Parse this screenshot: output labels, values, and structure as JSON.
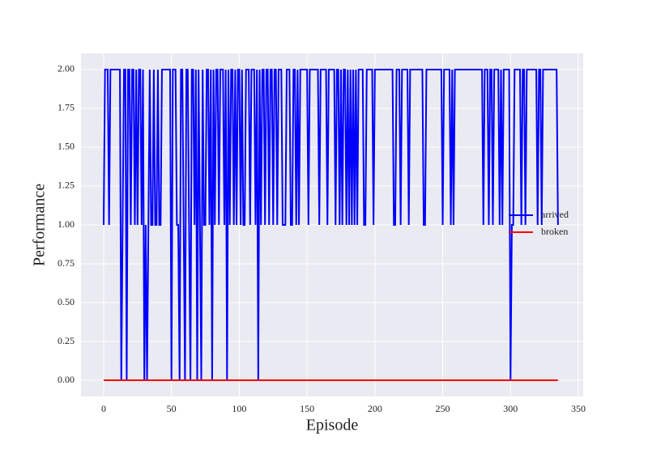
{
  "chart_data": {
    "type": "line",
    "x_label": "Episode",
    "y_label": "Performance",
    "x": [
      0,
      1,
      2,
      3,
      4,
      5,
      6,
      7,
      8,
      9,
      10,
      11,
      12,
      13,
      14,
      15,
      16,
      17,
      18,
      19,
      20,
      21,
      22,
      23,
      24,
      25,
      26,
      27,
      28,
      29,
      30,
      31,
      32,
      33,
      34,
      35,
      36,
      37,
      38,
      39,
      40,
      41,
      42,
      43,
      44,
      45,
      46,
      47,
      48,
      49,
      50,
      51,
      52,
      53,
      54,
      55,
      56,
      57,
      58,
      59,
      60,
      61,
      62,
      63,
      64,
      65,
      66,
      67,
      68,
      69,
      70,
      71,
      72,
      73,
      74,
      75,
      76,
      77,
      78,
      79,
      80,
      81,
      82,
      83,
      84,
      85,
      86,
      87,
      88,
      89,
      90,
      91,
      92,
      93,
      94,
      95,
      96,
      97,
      98,
      99,
      100,
      101,
      102,
      103,
      104,
      105,
      106,
      107,
      108,
      109,
      110,
      111,
      112,
      113,
      114,
      115,
      116,
      117,
      118,
      119,
      120,
      121,
      122,
      123,
      124,
      125,
      126,
      127,
      128,
      129,
      130,
      131,
      132,
      133,
      134,
      135,
      136,
      137,
      138,
      139,
      140,
      141,
      142,
      143,
      144,
      145,
      146,
      147,
      148,
      149,
      150,
      151,
      152,
      153,
      154,
      155,
      156,
      157,
      158,
      159,
      160,
      161,
      162,
      163,
      164,
      165,
      166,
      167,
      168,
      169,
      170,
      171,
      172,
      173,
      174,
      175,
      176,
      177,
      178,
      179,
      180,
      181,
      182,
      183,
      184,
      185,
      186,
      187,
      188,
      189,
      190,
      191,
      192,
      193,
      194,
      195,
      196,
      197,
      198,
      199,
      200,
      201,
      202,
      203,
      204,
      205,
      206,
      207,
      208,
      209,
      210,
      211,
      212,
      213,
      214,
      215,
      216,
      217,
      218,
      219,
      220,
      221,
      222,
      223,
      224,
      225,
      226,
      227,
      228,
      229,
      230,
      231,
      232,
      233,
      234,
      235,
      236,
      237,
      238,
      239,
      240,
      241,
      242,
      243,
      244,
      245,
      246,
      247,
      248,
      249,
      250,
      251,
      252,
      253,
      254,
      255,
      256,
      257,
      258,
      259,
      260,
      261,
      262,
      263,
      264,
      265,
      266,
      267,
      268,
      269,
      270,
      271,
      272,
      273,
      274,
      275,
      276,
      277,
      278,
      279,
      280,
      281,
      282,
      283,
      284,
      285,
      286,
      287,
      288,
      289,
      290,
      291,
      292,
      293,
      294,
      295,
      296,
      297,
      298,
      299,
      300,
      301,
      302,
      303,
      304,
      305,
      306,
      307,
      308,
      309,
      310,
      311,
      312,
      313,
      314,
      315,
      316,
      317,
      318,
      319,
      320,
      321,
      322,
      323,
      324,
      325,
      326,
      327,
      328,
      329,
      330,
      331,
      332,
      333,
      334,
      335
    ],
    "series": [
      {
        "name": "arrived",
        "color": "#0000ff",
        "values": [
          1,
          2,
          2,
          2,
          1,
          2,
          2,
          2,
          2,
          2,
          2,
          2,
          2,
          0,
          1,
          2,
          2,
          0,
          2,
          2,
          1,
          2,
          2,
          1,
          2,
          1,
          2,
          2,
          1,
          2,
          0,
          1,
          0,
          1,
          2,
          1,
          1,
          2,
          1,
          1,
          2,
          1,
          1,
          2,
          2,
          2,
          2,
          2,
          2,
          2,
          0,
          2,
          2,
          2,
          1,
          1,
          0,
          2,
          2,
          1,
          0,
          2,
          2,
          1,
          0,
          2,
          2,
          1,
          2,
          0,
          2,
          1,
          0,
          2,
          1,
          1,
          2,
          2,
          1,
          2,
          0,
          2,
          1,
          2,
          2,
          1,
          2,
          2,
          2,
          1,
          2,
          0,
          2,
          1,
          2,
          2,
          1,
          2,
          1,
          2,
          2,
          1,
          2,
          1,
          1,
          2,
          2,
          2,
          1,
          2,
          2,
          2,
          1,
          2,
          0,
          2,
          1,
          2,
          2,
          1,
          2,
          2,
          1,
          2,
          2,
          1,
          2,
          2,
          1,
          2,
          2,
          2,
          1,
          1,
          1,
          2,
          2,
          2,
          1,
          1,
          2,
          2,
          1,
          2,
          1,
          2,
          2,
          2,
          2,
          2,
          2,
          1,
          2,
          2,
          2,
          2,
          2,
          2,
          2,
          1,
          2,
          2,
          2,
          2,
          2,
          1,
          2,
          2,
          2,
          2,
          2,
          1,
          2,
          2,
          1,
          2,
          1,
          2,
          2,
          1,
          2,
          1,
          2,
          1,
          2,
          1,
          2,
          1,
          2,
          2,
          2,
          2,
          1,
          1,
          2,
          2,
          2,
          2,
          2,
          1,
          2,
          2,
          2,
          2,
          2,
          2,
          2,
          2,
          2,
          2,
          2,
          2,
          2,
          2,
          1,
          1,
          2,
          2,
          2,
          1,
          2,
          2,
          2,
          2,
          2,
          1,
          2,
          2,
          2,
          2,
          2,
          2,
          2,
          2,
          2,
          2,
          1,
          1,
          2,
          2,
          2,
          2,
          2,
          2,
          2,
          2,
          2,
          2,
          2,
          2,
          1,
          2,
          2,
          2,
          2,
          2,
          1,
          2,
          1,
          2,
          2,
          2,
          2,
          2,
          2,
          2,
          2,
          2,
          2,
          2,
          2,
          2,
          2,
          2,
          2,
          2,
          2,
          2,
          2,
          2,
          1,
          2,
          2,
          2,
          1,
          2,
          2,
          1,
          2,
          2,
          2,
          2,
          1,
          2,
          1,
          2,
          2,
          2,
          2,
          2,
          0,
          1,
          1,
          2,
          2,
          2,
          2,
          2,
          1,
          2,
          2,
          1,
          2,
          2,
          2,
          2,
          2,
          2,
          2,
          2,
          1,
          2,
          2,
          1,
          2,
          2,
          2,
          2,
          2,
          2,
          2,
          2,
          2,
          2,
          2,
          1
        ]
      },
      {
        "name": "broken",
        "color": "#ff0000",
        "values": [
          0,
          0,
          0,
          0,
          0,
          0,
          0,
          0,
          0,
          0,
          0,
          0,
          0,
          0,
          0,
          0,
          0,
          0,
          0,
          0,
          0,
          0,
          0,
          0,
          0,
          0,
          0,
          0,
          0,
          0,
          0,
          0,
          0,
          0,
          0,
          0,
          0,
          0,
          0,
          0,
          0,
          0,
          0,
          0,
          0,
          0,
          0,
          0,
          0,
          0,
          0,
          0,
          0,
          0,
          0,
          0,
          0,
          0,
          0,
          0,
          0,
          0,
          0,
          0,
          0,
          0,
          0,
          0,
          0,
          0,
          0,
          0,
          0,
          0,
          0,
          0,
          0,
          0,
          0,
          0,
          0,
          0,
          0,
          0,
          0,
          0,
          0,
          0,
          0,
          0,
          0,
          0,
          0,
          0,
          0,
          0,
          0,
          0,
          0,
          0,
          0,
          0,
          0,
          0,
          0,
          0,
          0,
          0,
          0,
          0,
          0,
          0,
          0,
          0,
          0,
          0,
          0,
          0,
          0,
          0,
          0,
          0,
          0,
          0,
          0,
          0,
          0,
          0,
          0,
          0,
          0,
          0,
          0,
          0,
          0,
          0,
          0,
          0,
          0,
          0,
          0,
          0,
          0,
          0,
          0,
          0,
          0,
          0,
          0,
          0,
          0,
          0,
          0,
          0,
          0,
          0,
          0,
          0,
          0,
          0,
          0,
          0,
          0,
          0,
          0,
          0,
          0,
          0,
          0,
          0,
          0,
          0,
          0,
          0,
          0,
          0,
          0,
          0,
          0,
          0,
          0,
          0,
          0,
          0,
          0,
          0,
          0,
          0,
          0,
          0,
          0,
          0,
          0,
          0,
          0,
          0,
          0,
          0,
          0,
          0,
          0,
          0,
          0,
          0,
          0,
          0,
          0,
          0,
          0,
          0,
          0,
          0,
          0,
          0,
          0,
          0,
          0,
          0,
          0,
          0,
          0,
          0,
          0,
          0,
          0,
          0,
          0,
          0,
          0,
          0,
          0,
          0,
          0,
          0,
          0,
          0,
          0,
          0,
          0,
          0,
          0,
          0,
          0,
          0,
          0,
          0,
          0,
          0,
          0,
          0,
          0,
          0,
          0,
          0,
          0,
          0,
          0,
          0,
          0,
          0,
          0,
          0,
          0,
          0,
          0,
          0,
          0,
          0,
          0,
          0,
          0,
          0,
          0,
          0,
          0,
          0,
          0,
          0,
          0,
          0,
          0,
          0,
          0,
          0,
          0,
          0,
          0,
          0,
          0,
          0,
          0,
          0,
          0,
          0,
          0,
          0,
          0,
          0,
          0,
          0,
          0,
          0,
          0,
          0,
          0,
          0,
          0,
          0,
          0,
          0,
          0,
          0,
          0,
          0,
          0,
          0,
          0,
          0,
          0,
          0,
          0,
          0,
          0,
          0,
          0,
          0,
          0,
          0,
          0,
          0,
          0,
          0,
          0,
          0,
          0,
          0
        ]
      }
    ],
    "xlim": [
      -16.7,
      353.6
    ],
    "xticks": [
      0,
      50,
      100,
      150,
      200,
      250,
      300,
      350
    ],
    "ylim": [
      -0.104,
      2.104
    ],
    "yticks": [
      {
        "value": 0,
        "label": "0.00"
      },
      {
        "value": 0.25,
        "label": "0.25"
      },
      {
        "value": 0.5,
        "label": "0.50"
      },
      {
        "value": 0.75,
        "label": "0.75"
      },
      {
        "value": 1,
        "label": "1.00"
      },
      {
        "value": 1.25,
        "label": "1.25"
      },
      {
        "value": 1.5,
        "label": "1.50"
      },
      {
        "value": 1.75,
        "label": "1.75"
      },
      {
        "value": 2,
        "label": "2.00"
      }
    ],
    "grid": true,
    "legend": "center right"
  }
}
